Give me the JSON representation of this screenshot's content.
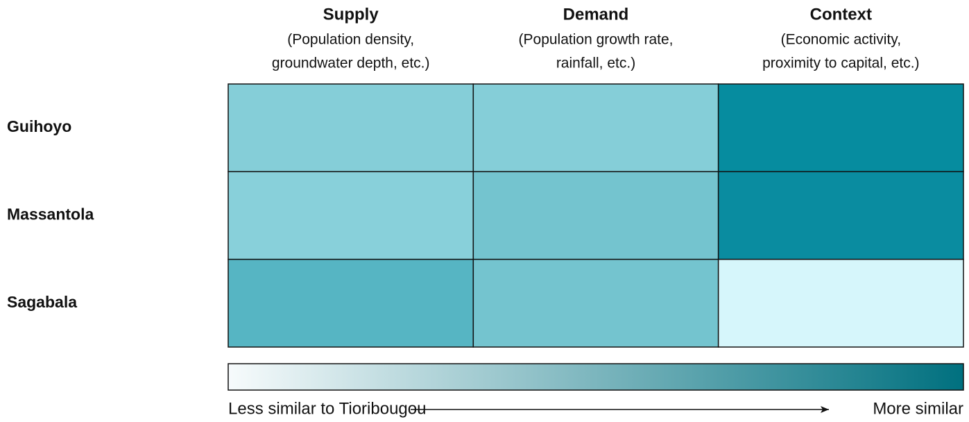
{
  "chart_data": {
    "type": "heatmap",
    "columns": [
      {
        "title": "Supply",
        "subtitle": [
          "(Population density,",
          "groundwater depth, etc.)"
        ]
      },
      {
        "title": "Demand",
        "subtitle": [
          "(Population growth rate,",
          "rainfall, etc.)"
        ]
      },
      {
        "title": "Context",
        "subtitle": [
          "(Economic activity,",
          "proximity to capital, etc.)"
        ]
      }
    ],
    "rows": [
      "Guihoyo",
      "Massantola",
      "Sagabala"
    ],
    "colors": [
      [
        "#85ced8",
        "#85ced8",
        "#068c9f"
      ],
      [
        "#88d0da",
        "#74c4cf",
        "#0a8ca0"
      ],
      [
        "#56b5c3",
        "#74c4cf",
        "#d6f6fb"
      ]
    ],
    "colorbar": {
      "colors": [
        "#f7fbfc",
        "#00707f"
      ],
      "left_label": "Less similar to Tioribougou",
      "right_label": "More similar"
    }
  }
}
